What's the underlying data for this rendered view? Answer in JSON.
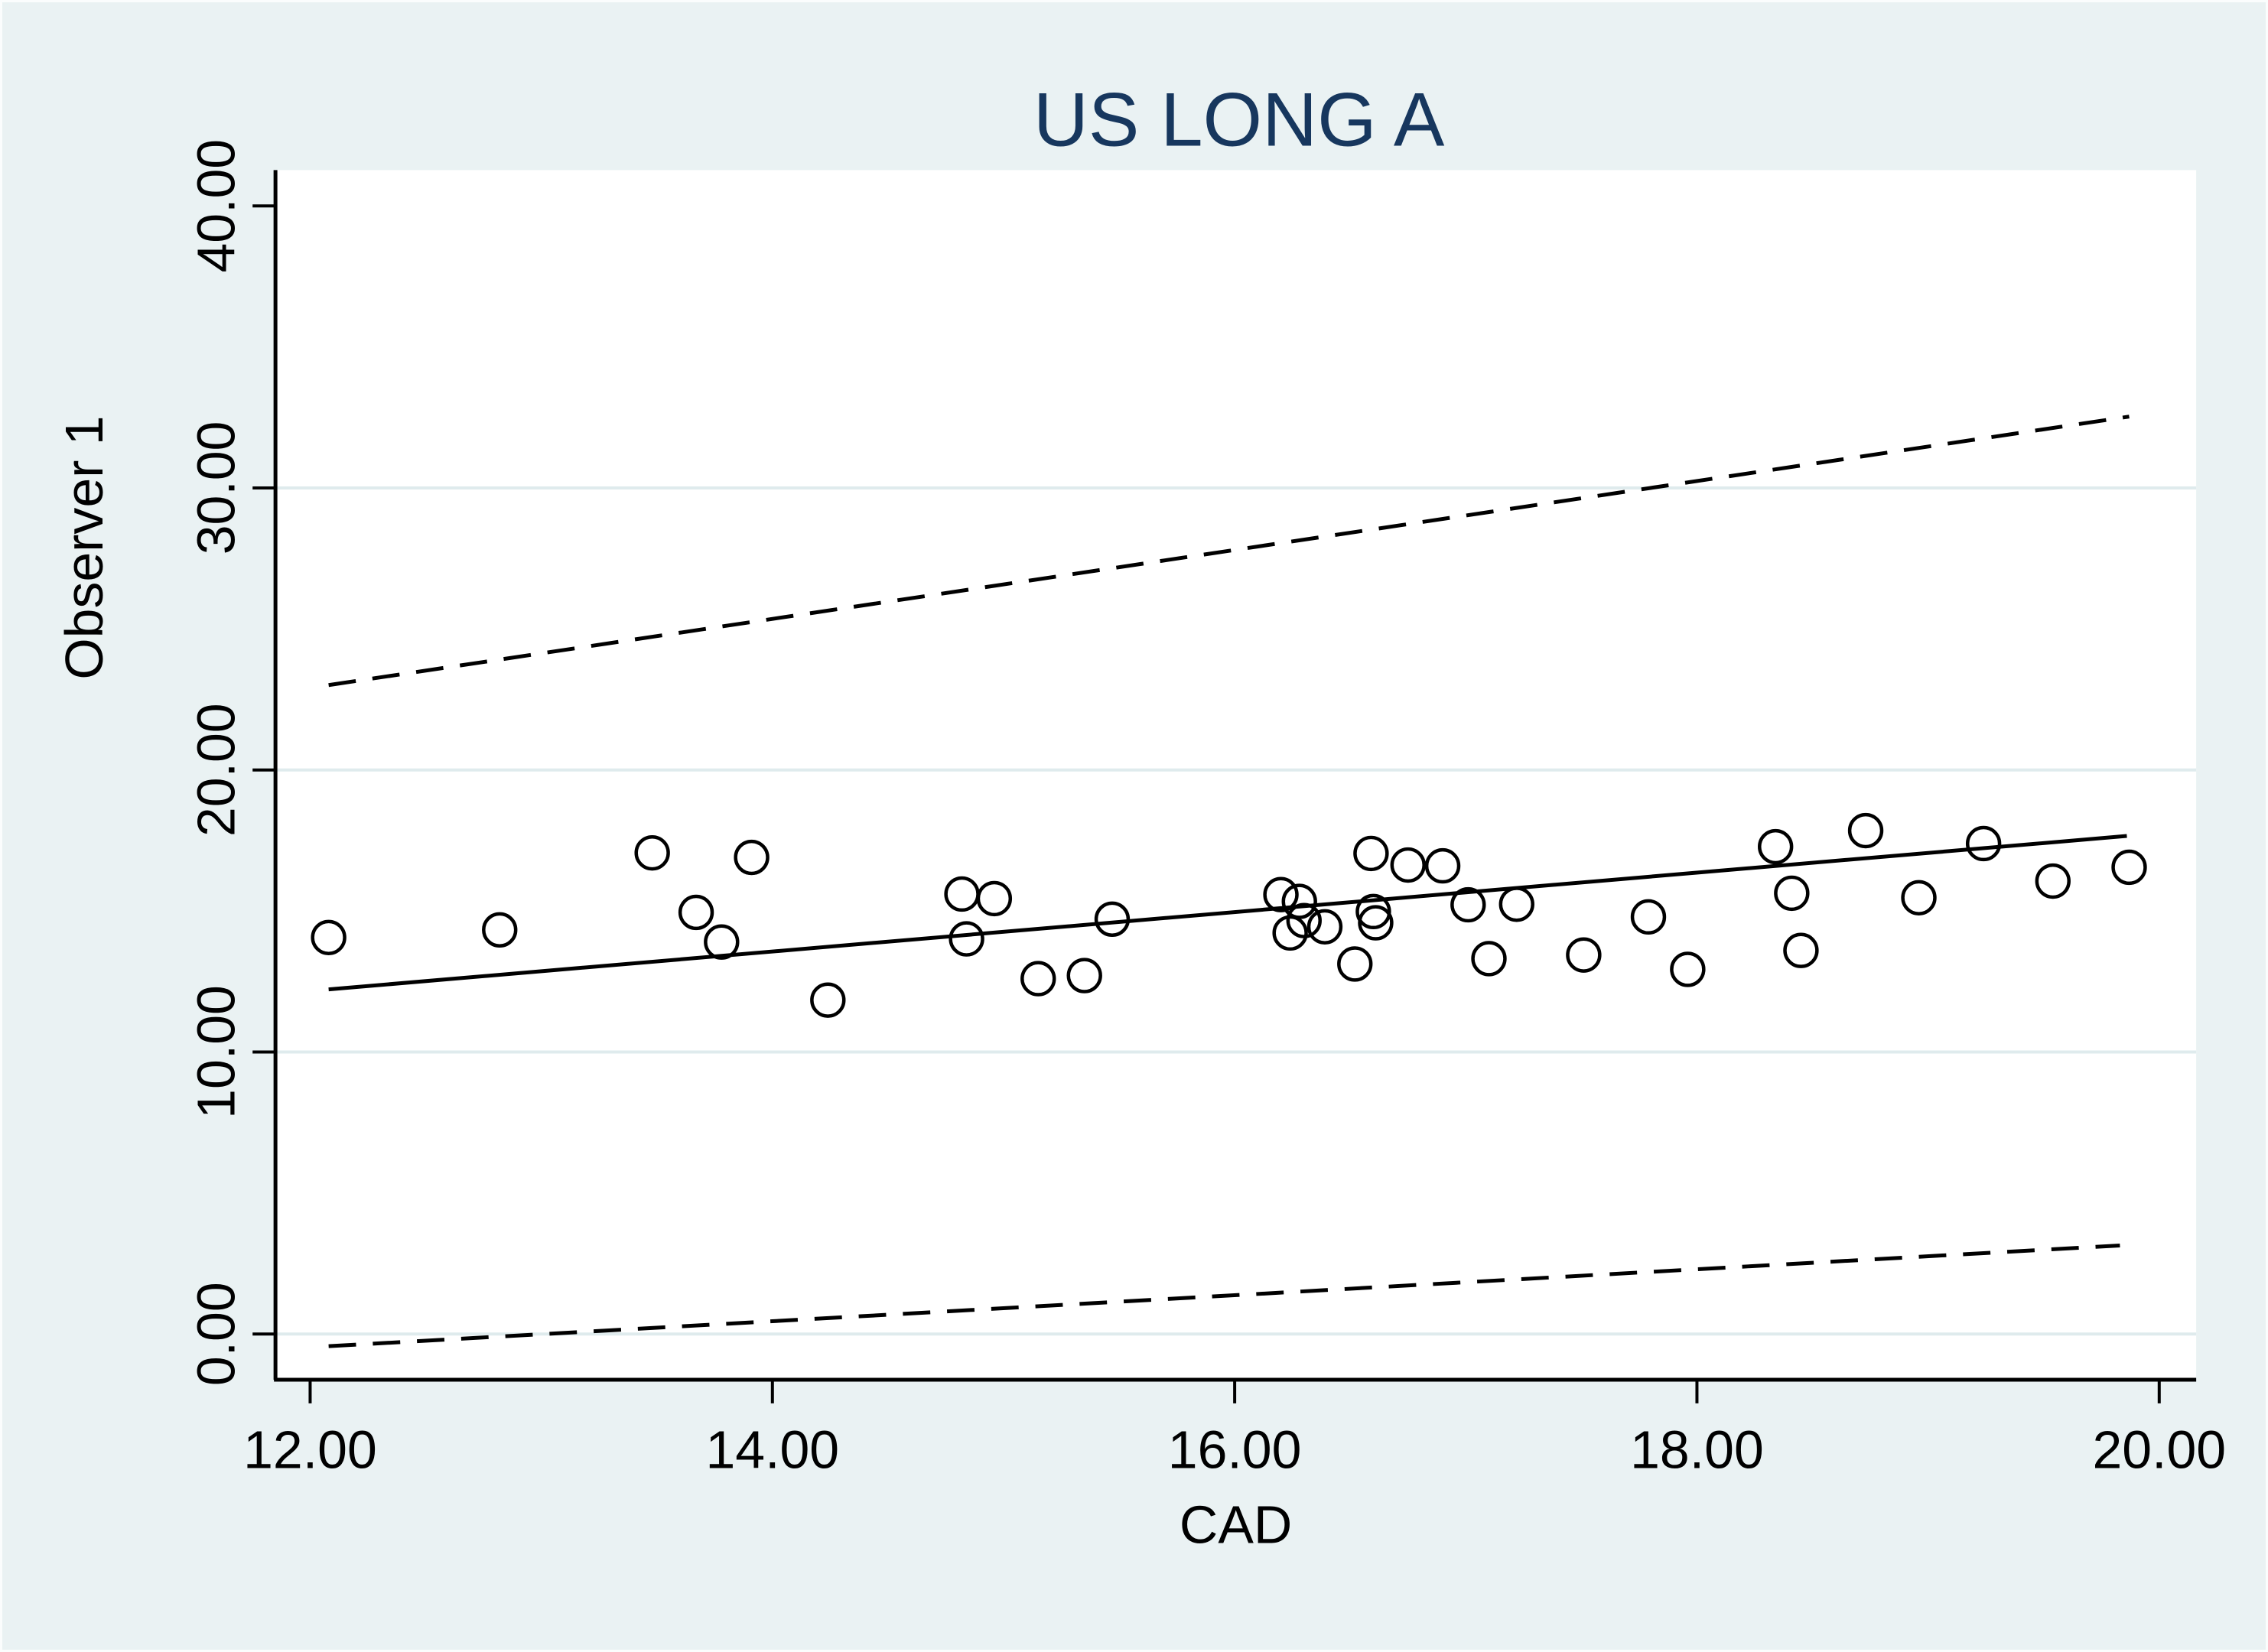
{
  "chart_data": {
    "type": "scatter",
    "title": "US LONG A",
    "xlabel": "CAD",
    "ylabel": "Observer 1",
    "xlim": [
      11.85,
      20.16
    ],
    "ylim": [
      -1.62,
      41.27
    ],
    "xticks": [
      {
        "v": 12,
        "label": "12.00"
      },
      {
        "v": 14,
        "label": "14.00"
      },
      {
        "v": 16,
        "label": "16.00"
      },
      {
        "v": 18,
        "label": "18.00"
      },
      {
        "v": 20,
        "label": "20.00"
      }
    ],
    "yticks": [
      {
        "v": 0,
        "label": "0.00"
      },
      {
        "v": 10,
        "label": "10.00"
      },
      {
        "v": 20,
        "label": "20.00"
      },
      {
        "v": 30,
        "label": "30.00"
      },
      {
        "v": 40,
        "label": "40.00"
      }
    ],
    "y_gridlines": [
      0,
      10,
      20,
      30
    ],
    "grid": "horizontal",
    "legend": "none",
    "marker": "hollow-circle",
    "points": [
      [
        12.08,
        14.06
      ],
      [
        12.82,
        14.33
      ],
      [
        13.48,
        17.06
      ],
      [
        13.67,
        14.95
      ],
      [
        13.78,
        13.9
      ],
      [
        13.91,
        16.9
      ],
      [
        14.24,
        11.84
      ],
      [
        14.82,
        15.6
      ],
      [
        14.84,
        14.01
      ],
      [
        14.96,
        15.44
      ],
      [
        15.15,
        12.6
      ],
      [
        15.35,
        12.71
      ],
      [
        15.47,
        14.71
      ],
      [
        16.2,
        15.58
      ],
      [
        16.24,
        14.22
      ],
      [
        16.28,
        15.34
      ],
      [
        16.3,
        14.66
      ],
      [
        16.39,
        14.44
      ],
      [
        16.52,
        13.12
      ],
      [
        16.59,
        17.04
      ],
      [
        16.6,
        14.98
      ],
      [
        16.61,
        14.58
      ],
      [
        16.75,
        16.63
      ],
      [
        16.9,
        16.6
      ],
      [
        17.01,
        15.22
      ],
      [
        17.1,
        13.31
      ],
      [
        17.22,
        15.24
      ],
      [
        17.51,
        13.44
      ],
      [
        17.79,
        14.79
      ],
      [
        17.96,
        12.93
      ],
      [
        18.34,
        17.28
      ],
      [
        18.41,
        15.63
      ],
      [
        18.45,
        13.6
      ],
      [
        18.73,
        17.85
      ],
      [
        18.96,
        15.47
      ],
      [
        19.24,
        17.39
      ],
      [
        19.54,
        16.06
      ],
      [
        19.87,
        16.55
      ]
    ],
    "lines": [
      {
        "name": "regression-line",
        "style": "solid",
        "x1": 12.08,
        "y1": 12.22,
        "x2": 19.86,
        "y2": 17.66
      },
      {
        "name": "upper-limit-line",
        "style": "dashed",
        "x1": 12.08,
        "y1": 23.01,
        "x2": 19.87,
        "y2": 32.53
      },
      {
        "name": "lower-limit-line",
        "style": "dashed",
        "x1": 12.08,
        "y1": -0.43,
        "x2": 19.83,
        "y2": 3.14
      }
    ],
    "colors": {
      "background": "#eaf2f3",
      "plot_background": "#ffffff",
      "gridline": "#dfebed",
      "axis": "#000000",
      "title": "#17375e",
      "marker": "#000000"
    }
  }
}
